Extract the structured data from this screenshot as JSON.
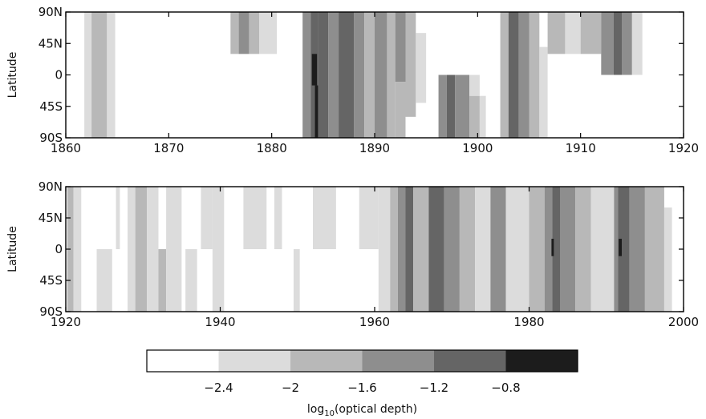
{
  "chart_data": [
    {
      "type": "heatmap",
      "title": "",
      "xlabel": "",
      "ylabel": "Latitude",
      "xlim": [
        1860,
        1920
      ],
      "x_ticks": [
        1860,
        1870,
        1880,
        1890,
        1900,
        1910,
        1920
      ],
      "x_tick_labels": [
        "1860",
        "1870",
        "1880",
        "1890",
        "1900",
        "1910",
        "1920"
      ],
      "y_ticks": [
        90,
        45,
        0,
        -45,
        -90
      ],
      "y_tick_labels": [
        "90N",
        "45N",
        "0",
        "45S",
        "90S"
      ],
      "ylim": [
        -90,
        90
      ],
      "value_units": "log10(optical depth)",
      "cells": [
        {
          "x0": 1861.8,
          "x1": 1862.5,
          "lat0": -90,
          "lat1": 90,
          "value": -2.2
        },
        {
          "x0": 1862.5,
          "x1": 1864.0,
          "lat0": -90,
          "lat1": 90,
          "value": -1.8
        },
        {
          "x0": 1864.0,
          "x1": 1864.8,
          "lat0": -90,
          "lat1": 90,
          "value": -2.2
        },
        {
          "x0": 1876.0,
          "x1": 1876.8,
          "lat0": 30,
          "lat1": 90,
          "value": -1.8
        },
        {
          "x0": 1876.8,
          "x1": 1877.8,
          "lat0": 30,
          "lat1": 90,
          "value": -1.4
        },
        {
          "x0": 1877.8,
          "x1": 1878.8,
          "lat0": 30,
          "lat1": 90,
          "value": -1.8
        },
        {
          "x0": 1878.8,
          "x1": 1880.5,
          "lat0": 30,
          "lat1": 90,
          "value": -2.2
        },
        {
          "x0": 1883.0,
          "x1": 1883.8,
          "lat0": -90,
          "lat1": 90,
          "value": -1.4
        },
        {
          "x0": 1883.8,
          "x1": 1884.0,
          "lat0": -90,
          "lat1": 90,
          "value": -1.0
        },
        {
          "x0": 1884.0,
          "x1": 1884.5,
          "lat0": -90,
          "lat1": 90,
          "value": -1.0
        },
        {
          "x0": 1883.9,
          "x1": 1884.4,
          "lat0": -15,
          "lat1": 30,
          "value": -0.6
        },
        {
          "x0": 1884.2,
          "x1": 1884.5,
          "lat0": -90,
          "lat1": -15,
          "value": -0.6
        },
        {
          "x0": 1884.5,
          "x1": 1885.5,
          "lat0": -90,
          "lat1": 90,
          "value": -1.0
        },
        {
          "x0": 1885.5,
          "x1": 1886.5,
          "lat0": -90,
          "lat1": 90,
          "value": -1.4
        },
        {
          "x0": 1886.5,
          "x1": 1888.0,
          "lat0": -90,
          "lat1": 90,
          "value": -1.0
        },
        {
          "x0": 1888.0,
          "x1": 1889.0,
          "lat0": -90,
          "lat1": 90,
          "value": -1.4
        },
        {
          "x0": 1889.0,
          "x1": 1890.0,
          "lat0": -90,
          "lat1": 90,
          "value": -1.8
        },
        {
          "x0": 1890.0,
          "x1": 1891.2,
          "lat0": -90,
          "lat1": 90,
          "value": -1.4
        },
        {
          "x0": 1891.2,
          "x1": 1892.0,
          "lat0": -90,
          "lat1": 90,
          "value": -1.8
        },
        {
          "x0": 1892.0,
          "x1": 1893.0,
          "lat0": -10,
          "lat1": 90,
          "value": -1.4
        },
        {
          "x0": 1892.0,
          "x1": 1893.0,
          "lat0": -90,
          "lat1": -10,
          "value": -1.8
        },
        {
          "x0": 1893.0,
          "x1": 1894.0,
          "lat0": -60,
          "lat1": 90,
          "value": -1.8
        },
        {
          "x0": 1894.0,
          "x1": 1895.0,
          "lat0": -40,
          "lat1": 60,
          "value": -2.2
        },
        {
          "x0": 1896.2,
          "x1": 1897.0,
          "lat0": -90,
          "lat1": 0,
          "value": -1.4
        },
        {
          "x0": 1897.0,
          "x1": 1897.8,
          "lat0": -90,
          "lat1": 0,
          "value": -1.0
        },
        {
          "x0": 1897.8,
          "x1": 1899.2,
          "lat0": -90,
          "lat1": 0,
          "value": -1.4
        },
        {
          "x0": 1899.2,
          "x1": 1900.2,
          "lat0": -90,
          "lat1": -30,
          "value": -1.8
        },
        {
          "x0": 1900.2,
          "x1": 1900.8,
          "lat0": -90,
          "lat1": -30,
          "value": -2.2
        },
        {
          "x0": 1899.2,
          "x1": 1900.2,
          "lat0": -30,
          "lat1": 0,
          "value": -2.2
        },
        {
          "x0": 1902.2,
          "x1": 1903.0,
          "lat0": -90,
          "lat1": 90,
          "value": -1.8
        },
        {
          "x0": 1903.0,
          "x1": 1904.0,
          "lat0": -90,
          "lat1": 90,
          "value": -1.0
        },
        {
          "x0": 1904.0,
          "x1": 1905.0,
          "lat0": -90,
          "lat1": 90,
          "value": -1.4
        },
        {
          "x0": 1905.0,
          "x1": 1906.0,
          "lat0": -90,
          "lat1": 90,
          "value": -1.8
        },
        {
          "x0": 1906.0,
          "x1": 1906.8,
          "lat0": -90,
          "lat1": 40,
          "value": -2.2
        },
        {
          "x0": 1906.8,
          "x1": 1908.5,
          "lat0": 30,
          "lat1": 90,
          "value": -1.8
        },
        {
          "x0": 1908.5,
          "x1": 1910.0,
          "lat0": 30,
          "lat1": 90,
          "value": -2.2
        },
        {
          "x0": 1910.0,
          "x1": 1912.0,
          "lat0": 30,
          "lat1": 90,
          "value": -1.8
        },
        {
          "x0": 1912.0,
          "x1": 1913.2,
          "lat0": 0,
          "lat1": 90,
          "value": -1.4
        },
        {
          "x0": 1913.2,
          "x1": 1914.0,
          "lat0": 0,
          "lat1": 90,
          "value": -1.0
        },
        {
          "x0": 1914.0,
          "x1": 1915.0,
          "lat0": 0,
          "lat1": 90,
          "value": -1.4
        },
        {
          "x0": 1915.0,
          "x1": 1916.0,
          "lat0": 0,
          "lat1": 90,
          "value": -2.2
        }
      ]
    },
    {
      "type": "heatmap",
      "title": "",
      "xlabel": "",
      "ylabel": "Latitude",
      "xlim": [
        1920,
        2000
      ],
      "x_ticks": [
        1920,
        1940,
        1960,
        1980,
        2000
      ],
      "x_tick_labels": [
        "1920",
        "1940",
        "1960",
        "1980",
        "2000"
      ],
      "y_ticks": [
        90,
        45,
        0,
        -45,
        -90
      ],
      "y_tick_labels": [
        "90N",
        "45N",
        "0",
        "45S",
        "90S"
      ],
      "ylim": [
        -90,
        90
      ],
      "value_units": "log10(optical depth)",
      "cells": [
        {
          "x0": 1920.2,
          "x1": 1921.0,
          "lat0": -90,
          "lat1": 90,
          "value": -1.8
        },
        {
          "x0": 1921.0,
          "x1": 1922.0,
          "lat0": -90,
          "lat1": 90,
          "value": -2.2
        },
        {
          "x0": 1924.0,
          "x1": 1926.0,
          "lat0": -90,
          "lat1": 0,
          "value": -2.2
        },
        {
          "x0": 1926.5,
          "x1": 1927.0,
          "lat0": 0,
          "lat1": 90,
          "value": -2.2
        },
        {
          "x0": 1928.0,
          "x1": 1929.0,
          "lat0": -90,
          "lat1": 90,
          "value": -2.2
        },
        {
          "x0": 1929.0,
          "x1": 1930.5,
          "lat0": -90,
          "lat1": 90,
          "value": -1.8
        },
        {
          "x0": 1930.5,
          "x1": 1932.0,
          "lat0": -90,
          "lat1": 90,
          "value": -2.2
        },
        {
          "x0": 1932.0,
          "x1": 1933.0,
          "lat0": -90,
          "lat1": 0,
          "value": -1.8
        },
        {
          "x0": 1933.0,
          "x1": 1935.0,
          "lat0": -90,
          "lat1": 90,
          "value": -2.2
        },
        {
          "x0": 1935.5,
          "x1": 1937.0,
          "lat0": -90,
          "lat1": 0,
          "value": -2.2
        },
        {
          "x0": 1937.5,
          "x1": 1939.0,
          "lat0": 0,
          "lat1": 90,
          "value": -2.2
        },
        {
          "x0": 1939.0,
          "x1": 1940.5,
          "lat0": -90,
          "lat1": 90,
          "value": -2.2
        },
        {
          "x0": 1943.0,
          "x1": 1946.0,
          "lat0": 0,
          "lat1": 90,
          "value": -2.2
        },
        {
          "x0": 1947.0,
          "x1": 1948.0,
          "lat0": 0,
          "lat1": 90,
          "value": -2.2
        },
        {
          "x0": 1949.5,
          "x1": 1950.3,
          "lat0": -90,
          "lat1": 0,
          "value": -2.2
        },
        {
          "x0": 1952.0,
          "x1": 1955.0,
          "lat0": 0,
          "lat1": 90,
          "value": -2.2
        },
        {
          "x0": 1958.0,
          "x1": 1960.5,
          "lat0": 0,
          "lat1": 90,
          "value": -2.2
        },
        {
          "x0": 1960.5,
          "x1": 1962.0,
          "lat0": -90,
          "lat1": 90,
          "value": -2.2
        },
        {
          "x0": 1962.0,
          "x1": 1963.0,
          "lat0": -90,
          "lat1": 90,
          "value": -1.8
        },
        {
          "x0": 1963.0,
          "x1": 1964.0,
          "lat0": -90,
          "lat1": 90,
          "value": -1.4
        },
        {
          "x0": 1964.0,
          "x1": 1965.0,
          "lat0": -90,
          "lat1": 90,
          "value": -1.0
        },
        {
          "x0": 1965.0,
          "x1": 1967.0,
          "lat0": -90,
          "lat1": 90,
          "value": -1.8
        },
        {
          "x0": 1967.0,
          "x1": 1969.0,
          "lat0": -90,
          "lat1": 90,
          "value": -1.0
        },
        {
          "x0": 1969.0,
          "x1": 1971.0,
          "lat0": -90,
          "lat1": 90,
          "value": -1.4
        },
        {
          "x0": 1971.0,
          "x1": 1973.0,
          "lat0": -90,
          "lat1": 90,
          "value": -1.8
        },
        {
          "x0": 1973.0,
          "x1": 1975.0,
          "lat0": -90,
          "lat1": 90,
          "value": -2.2
        },
        {
          "x0": 1975.0,
          "x1": 1977.0,
          "lat0": -90,
          "lat1": 90,
          "value": -1.4
        },
        {
          "x0": 1977.0,
          "x1": 1980.0,
          "lat0": -90,
          "lat1": 90,
          "value": -2.2
        },
        {
          "x0": 1980.0,
          "x1": 1982.0,
          "lat0": -90,
          "lat1": 90,
          "value": -1.8
        },
        {
          "x0": 1982.0,
          "x1": 1983.0,
          "lat0": -90,
          "lat1": 90,
          "value": -1.4
        },
        {
          "x0": 1983.0,
          "x1": 1984.0,
          "lat0": -90,
          "lat1": 90,
          "value": -1.0
        },
        {
          "x0": 1982.9,
          "x1": 1983.2,
          "lat0": -10,
          "lat1": 15,
          "value": -0.6
        },
        {
          "x0": 1984.0,
          "x1": 1986.0,
          "lat0": -90,
          "lat1": 90,
          "value": -1.4
        },
        {
          "x0": 1986.0,
          "x1": 1988.0,
          "lat0": -90,
          "lat1": 90,
          "value": -1.8
        },
        {
          "x0": 1988.0,
          "x1": 1991.0,
          "lat0": -90,
          "lat1": 90,
          "value": -2.2
        },
        {
          "x0": 1991.0,
          "x1": 1991.5,
          "lat0": -90,
          "lat1": 90,
          "value": -1.4
        },
        {
          "x0": 1991.5,
          "x1": 1993.0,
          "lat0": -90,
          "lat1": 90,
          "value": -1.0
        },
        {
          "x0": 1991.6,
          "x1": 1992.0,
          "lat0": -10,
          "lat1": 15,
          "value": -0.6
        },
        {
          "x0": 1993.0,
          "x1": 1995.0,
          "lat0": -90,
          "lat1": 90,
          "value": -1.4
        },
        {
          "x0": 1995.0,
          "x1": 1997.5,
          "lat0": -90,
          "lat1": 90,
          "value": -1.8
        },
        {
          "x0": 1997.5,
          "x1": 1998.5,
          "lat0": -90,
          "lat1": 60,
          "value": -2.2
        }
      ]
    },
    {
      "type": "colorbar",
      "xlabel": "log10(optical depth)",
      "levels": [
        {
          "from": null,
          "to": -2.4,
          "color": "#ffffff"
        },
        {
          "from": -2.4,
          "to": -2.0,
          "color": "#dcdcdc"
        },
        {
          "from": -2.0,
          "to": -1.6,
          "color": "#b8b8b8"
        },
        {
          "from": -1.6,
          "to": -1.2,
          "color": "#8e8e8e"
        },
        {
          "from": -1.2,
          "to": -0.8,
          "color": "#656565"
        },
        {
          "from": -0.8,
          "to": null,
          "color": "#1c1c1c"
        }
      ],
      "ticks": [
        -2.4,
        -2.0,
        -1.6,
        -1.2,
        -0.8
      ],
      "tick_labels": [
        "−2.4",
        "−2",
        "−1.6",
        "−1.2",
        "−0.8"
      ],
      "label_prefix": "log",
      "label_subscript": "10",
      "label_suffix": "(optical depth)"
    }
  ]
}
